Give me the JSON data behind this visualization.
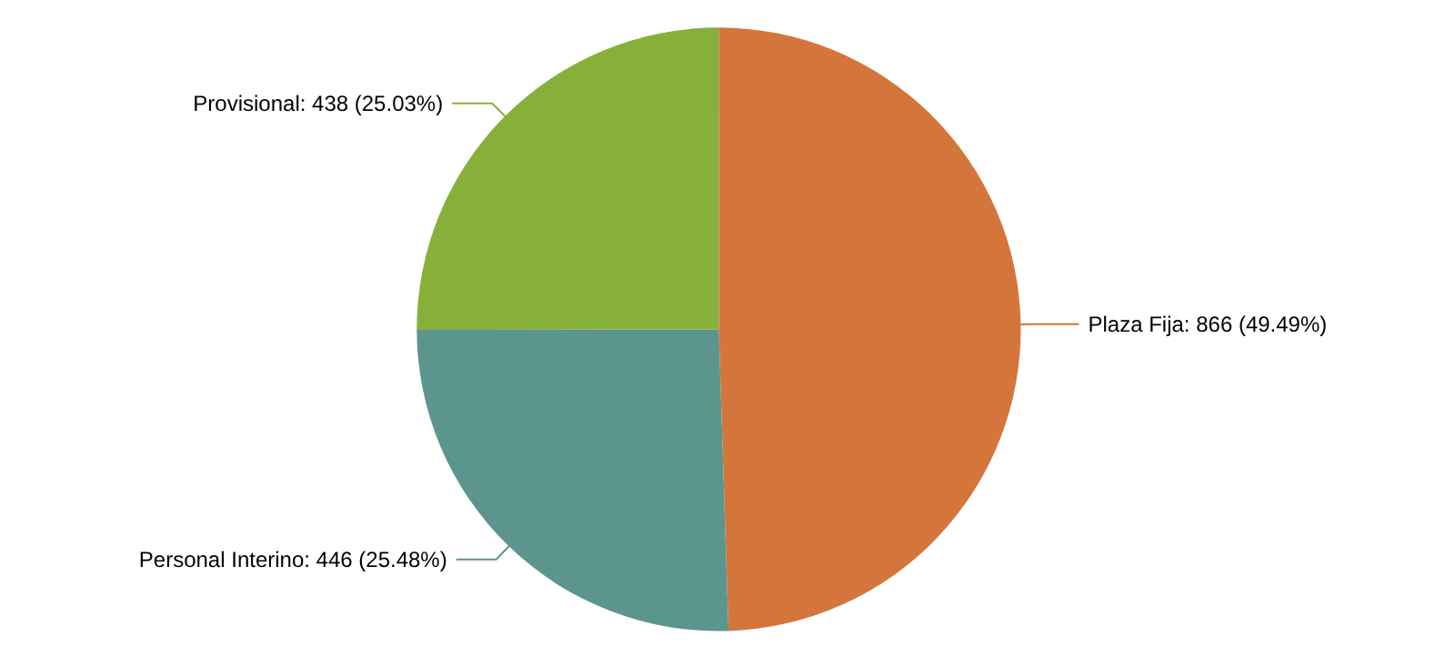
{
  "chart_data": {
    "type": "pie",
    "categories": [
      "Plaza Fija",
      "Personal Interino",
      "Provisional"
    ],
    "values": [
      866,
      446,
      438
    ],
    "colors": [
      "#d4763b",
      "#5b958e",
      "#87b03a"
    ],
    "value_labels": [
      "866 (49.49%)",
      "446 (25.48%)",
      "438 (25.03%)"
    ]
  }
}
